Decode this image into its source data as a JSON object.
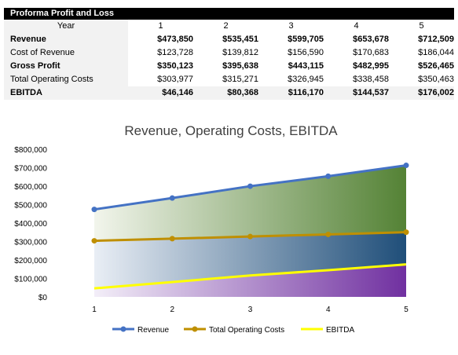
{
  "table": {
    "title": "Proforma Profit and Loss",
    "year_label": "Year",
    "years": [
      "1",
      "2",
      "3",
      "4",
      "5"
    ],
    "rows": [
      {
        "label": "Revenue",
        "values": [
          "$473,850",
          "$535,451",
          "$599,705",
          "$653,678",
          "$712,509"
        ],
        "bold": true,
        "shaded": false
      },
      {
        "label": "Cost of Revenue",
        "values": [
          "$123,728",
          "$139,812",
          "$156,590",
          "$170,683",
          "$186,044"
        ],
        "bold": false,
        "shaded": false
      },
      {
        "label": "Gross Profit",
        "values": [
          "$350,123",
          "$395,638",
          "$443,115",
          "$482,995",
          "$526,465"
        ],
        "bold": true,
        "shaded": false
      },
      {
        "label": "Total Operating Costs",
        "values": [
          "$303,977",
          "$315,271",
          "$326,945",
          "$338,458",
          "$350,463"
        ],
        "bold": false,
        "shaded": false
      },
      {
        "label": "EBITDA",
        "values": [
          "$46,146",
          "$80,368",
          "$116,170",
          "$144,537",
          "$176,002"
        ],
        "bold": true,
        "shaded": true
      }
    ]
  },
  "chart_data": {
    "type": "line",
    "title": "Revenue, Operating Costs, EBITDA",
    "categories": [
      1,
      2,
      3,
      4,
      5
    ],
    "ylim": [
      0,
      800000
    ],
    "yticks": [
      "$0",
      "$100,000",
      "$200,000",
      "$300,000",
      "$400,000",
      "$500,000",
      "$600,000",
      "$700,000",
      "$800,000"
    ],
    "grid": false,
    "legend": "bottom",
    "series": [
      {
        "name": "Revenue",
        "values": [
          473850,
          535451,
          599705,
          653678,
          712509
        ],
        "color": "#4472c4",
        "markers": true
      },
      {
        "name": "Total Operating Costs",
        "values": [
          303977,
          315271,
          326945,
          338458,
          350463
        ],
        "color": "#bf8f00",
        "markers": true
      },
      {
        "name": "EBITDA",
        "values": [
          46146,
          80368,
          116170,
          144537,
          176002
        ],
        "color": "#ffff00",
        "markers": false
      }
    ],
    "fills": {
      "revenue_band": [
        "#f2f5ec",
        "#548235"
      ],
      "costs_band": [
        "#e9eef5",
        "#1f4e79"
      ],
      "ebitda_band": [
        "#f3eef8",
        "#7030a0"
      ]
    }
  }
}
